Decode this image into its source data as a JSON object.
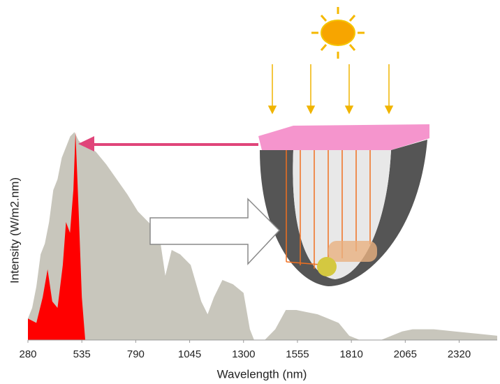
{
  "chart_data": {
    "type": "area",
    "x_label": "Wavelength (nm)",
    "y_label": "Intensity  (W/m2.nm)",
    "xlim": [
      280,
      2500
    ],
    "xticks": [
      280,
      535,
      790,
      1045,
      1300,
      1555,
      1810,
      2065,
      2320
    ],
    "ylim": [
      0,
      100
    ],
    "series": [
      {
        "color": "#c8c6bc",
        "x": [
          280,
          300,
          320,
          340,
          360,
          380,
          400,
          420,
          440,
          460,
          480,
          500,
          520,
          550,
          600,
          650,
          700,
          750,
          800,
          850,
          900,
          930,
          960,
          1000,
          1050,
          1100,
          1130,
          1160,
          1200,
          1250,
          1300,
          1330,
          1350,
          1400,
          1450,
          1500,
          1550,
          1600,
          1650,
          1700,
          1750,
          1800,
          1850,
          1950,
          2000,
          2050,
          2100,
          2200,
          2300,
          2400,
          2500
        ],
        "values": [
          10,
          15,
          25,
          40,
          45,
          55,
          70,
          75,
          85,
          90,
          95,
          97,
          93,
          90,
          88,
          82,
          75,
          68,
          60,
          55,
          50,
          30,
          42,
          40,
          35,
          18,
          12,
          20,
          28,
          26,
          22,
          5,
          0,
          0,
          5,
          14,
          14,
          13,
          12,
          10,
          8,
          2,
          0,
          0,
          2,
          4,
          5,
          5,
          4,
          3,
          2
        ]
      },
      {
        "color": "#ff0000",
        "x": [
          280,
          320,
          350,
          373,
          395,
          420,
          445,
          460,
          479,
          495,
          505,
          520,
          535,
          551
        ],
        "values": [
          10,
          8,
          20,
          33,
          18,
          15,
          35,
          55,
          50,
          70,
          97,
          60,
          20,
          0
        ]
      }
    ]
  }
}
